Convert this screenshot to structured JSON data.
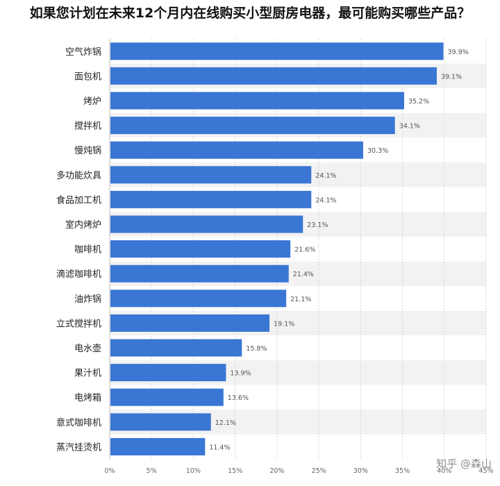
{
  "chart_data": {
    "type": "bar",
    "orientation": "horizontal",
    "title": "如果您计划在未来12个月内在线购买小型厨房电器，最可能购买哪些产品？",
    "categories": [
      "空气炸锅",
      "面包机",
      "烤炉",
      "搅拌机",
      "慢炖锅",
      "多功能炊具",
      "食品加工机",
      "室内烤炉",
      "咖啡机",
      "滴滤咖啡机",
      "油炸锅",
      "立式搅拌机",
      "电水壶",
      "果汁机",
      "电烤箱",
      "意式咖啡机",
      "蒸汽挂烫机"
    ],
    "values": [
      39.9,
      39.1,
      35.2,
      34.1,
      30.3,
      24.1,
      24.1,
      23.1,
      21.6,
      21.4,
      21.1,
      19.1,
      15.8,
      13.9,
      13.6,
      12.1,
      11.4
    ],
    "value_labels": [
      "39.9%",
      "39.1%",
      "35.2%",
      "34.1%",
      "30.3%",
      "24.1%",
      "24.1%",
      "23.1%",
      "21.6%",
      "21.4%",
      "21.1%",
      "19.1%",
      "15.8%",
      "13.9%",
      "13.6%",
      "12.1%",
      "11.4%"
    ],
    "xlim": [
      0,
      45
    ],
    "xticks": [
      "0%",
      "5%",
      "10%",
      "15%",
      "20%",
      "25%",
      "30%",
      "35%",
      "40%",
      "45%"
    ],
    "grid": true,
    "bar_color": "#3a76d4",
    "stripe_color": "#f2f2f2"
  },
  "watermark": "知乎 @森山"
}
